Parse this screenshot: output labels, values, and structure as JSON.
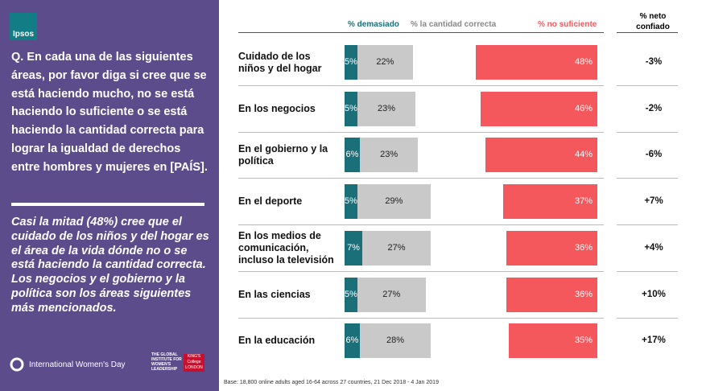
{
  "panel": {
    "logo": "Ipsos",
    "question": "Q. En cada una de las siguientes áreas, por favor diga si cree que se está haciendo mucho, no se está haciendo lo suficiente o se está haciendo la cantidad correcta para lograr la igualdad de derechos entre hombres y mujeres en [PAÍS].",
    "summary": "Casi la mitad (48%) cree que el cuidado de los niños  y del hogar es el área de la vida dónde no o se está haciendo la cantidad correcta. Los negocios y el gobierno y la política son los áreas siguientes más mencionados.",
    "footer_left": "International Women's Day",
    "footer_mid": "THE GLOBAL INSTITUTE FOR WOMEN'S LEADERSHIP",
    "footer_right": "KING'S College LONDON"
  },
  "chart_data": {
    "type": "bar",
    "categories": [
      "Cuidado de los niños  y del hogar",
      "En los negocios",
      "En el gobierno y la política",
      "En el deporte",
      "En los medios de comunicación, incluso la televisión",
      "En las ciencias",
      "En la educación"
    ],
    "series": [
      {
        "name": "% demasiado",
        "color": "#1b6f79",
        "values": [
          5,
          5,
          6,
          5,
          7,
          5,
          6
        ],
        "value_labels": [
          "5%",
          "5%",
          "6%",
          "5%",
          "7%",
          "5%",
          "6%"
        ]
      },
      {
        "name": "% la cantidad correcta",
        "color": "#c9c9c9",
        "values": [
          22,
          23,
          23,
          29,
          27,
          27,
          28
        ],
        "value_labels": [
          "22%",
          "23%",
          "23%",
          "29%",
          "27%",
          "27%",
          "28%"
        ]
      },
      {
        "name": "% no suficiente",
        "color": "#f4585c",
        "values": [
          48,
          46,
          44,
          37,
          36,
          36,
          35
        ],
        "value_labels": [
          "48%",
          "46%",
          "44%",
          "37%",
          "36%",
          "36%",
          "35%"
        ]
      }
    ],
    "net": {
      "name": "% neto confiado",
      "values": [
        -3,
        -2,
        -6,
        7,
        4,
        10,
        17
      ],
      "value_labels": [
        "-3%",
        "-2%",
        "-6%",
        "+7%",
        "+4%",
        "+10%",
        "+17%"
      ]
    },
    "note": "Base: 18,800 online adults aged 16-64 across 27 countries,  21 Dec 2018 - 4 Jan  2019"
  }
}
